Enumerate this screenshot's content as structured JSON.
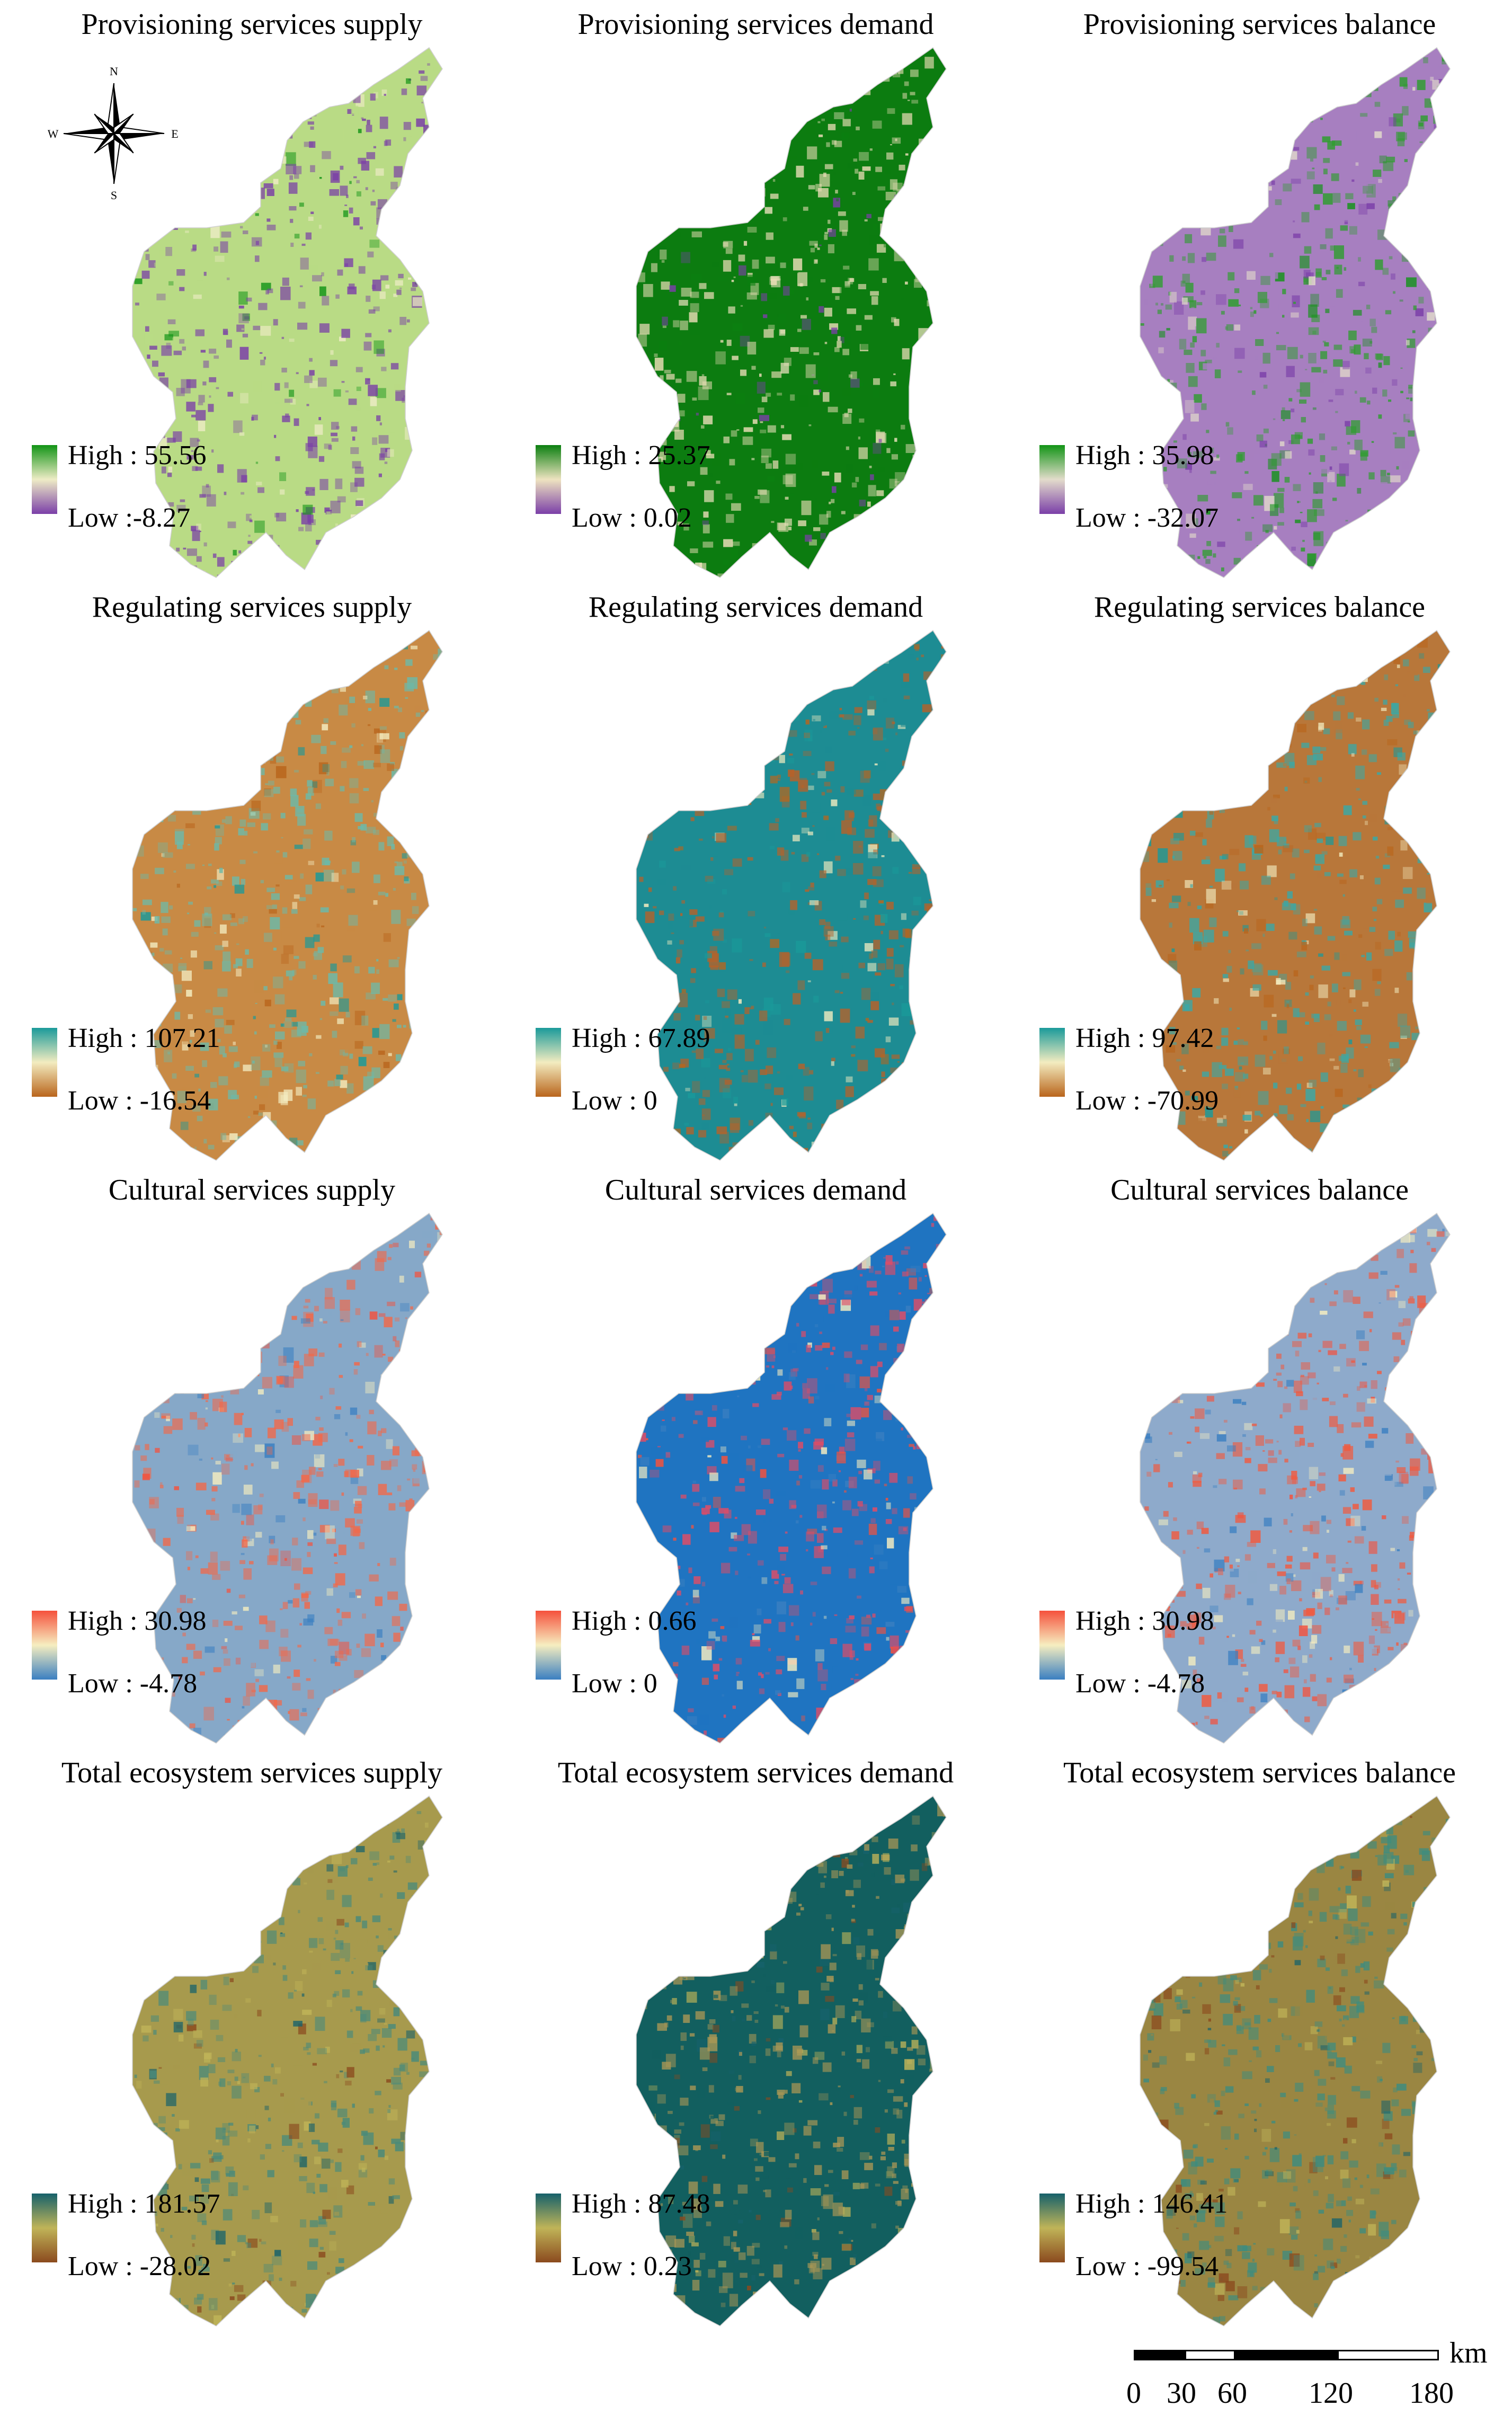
{
  "panels": [
    {
      "title": "Provisioning services supply",
      "high": "High : 55.56",
      "low": "Low :-8.27",
      "c1": "#7b3fa8",
      "c2": "#eeecc6",
      "c3": "#129416",
      "dominant": "#b9db85",
      "speck": "#7a3fa6"
    },
    {
      "title": "Provisioning services demand",
      "high": "High : 25.37",
      "low": "Low : 0.02",
      "c1": "#7b3fa8",
      "c2": "#eee3c0",
      "c3": "#0b7f10",
      "dominant": "#0c7c10",
      "speck": "#e9ddb6"
    },
    {
      "title": "Provisioning services balance",
      "high": "High : 35.98",
      "low": "Low : -32.07",
      "c1": "#7b3fa8",
      "c2": "#e3dccb",
      "c3": "#129416",
      "dominant": "#a77fc0",
      "speck": "#2f9d2f"
    },
    {
      "title": "Regulating services supply",
      "high": "High : 107.21",
      "low": "Low : -16.54",
      "c1": "#b9651c",
      "c2": "#f3ecc0",
      "c3": "#1a9a9a",
      "dominant": "#c88a45",
      "speck": "#6db9a8"
    },
    {
      "title": "Regulating services demand",
      "high": "High : 67.89",
      "low": "Low : 0",
      "c1": "#b9651c",
      "c2": "#f3ecc0",
      "c3": "#1a9a9a",
      "dominant": "#1d8c93",
      "speck": "#b5622a"
    },
    {
      "title": "Regulating services balance",
      "high": "High : 97.42",
      "low": "Low : -70.99",
      "c1": "#b9651c",
      "c2": "#f3ecc0",
      "c3": "#1a9a9a",
      "dominant": "#b8773a",
      "speck": "#3aa8a6"
    },
    {
      "title": "Cultural services supply",
      "high": "High : 30.98",
      "low": "Low : -4.78",
      "c1": "#3a7fc1",
      "c2": "#f6eec0",
      "c3": "#f5513c",
      "dominant": "#86a8c8",
      "speck": "#f36848"
    },
    {
      "title": "Cultural services demand",
      "high": "High : 0.66",
      "low": "Low : 0",
      "c1": "#3a7fc1",
      "c2": "#f6eec0",
      "c3": "#f5513c",
      "dominant": "#1f74c1",
      "speck": "#e04c66"
    },
    {
      "title": "Cultural services balance",
      "high": "High : 30.98",
      "low": "Low : -4.78",
      "c1": "#3a7fc1",
      "c2": "#f6eec0",
      "c3": "#f5513c",
      "dominant": "#8eaacb",
      "speck": "#f15a3f"
    },
    {
      "title": "Total ecosystem services supply",
      "high": "High : 181.57",
      "low": "Low : -28.02",
      "c1": "#8b4a1e",
      "c2": "#c0b458",
      "c3": "#16616b",
      "dominant": "#a79a4d",
      "speck": "#4a8a7a"
    },
    {
      "title": "Total ecosystem services demand",
      "high": "High : 87.48",
      "low": "Low : 0.23",
      "c1": "#8b4a1e",
      "c2": "#c0b458",
      "c3": "#16616b",
      "dominant": "#125f5f",
      "speck": "#a89655"
    },
    {
      "title": "Total ecosystem services balance",
      "high": "High : 146.41",
      "low": "Low : -99.54",
      "c1": "#8b4a1e",
      "c2": "#c0b458",
      "c3": "#16616b",
      "dominant": "#9a8642",
      "speck": "#3f8c7e"
    }
  ],
  "compass": {
    "n": "N",
    "s": "S",
    "e": "E",
    "w": "W"
  },
  "scale": {
    "unit": "km",
    "ticks": [
      "0",
      "30",
      "60",
      "120",
      "180"
    ]
  }
}
